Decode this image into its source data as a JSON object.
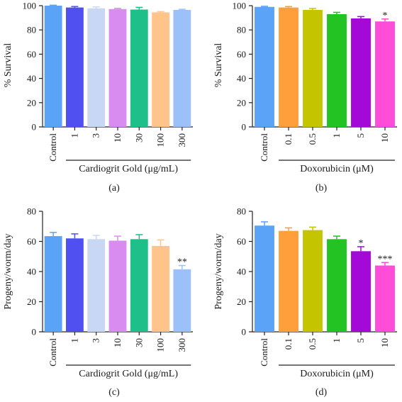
{
  "chart_data": [
    {
      "type": "bar",
      "panel_label": "(a)",
      "ylabel": "% Survival",
      "ylim": [
        0,
        100
      ],
      "yticks": [
        0,
        20,
        40,
        60,
        80,
        100
      ],
      "group_label": "Cardiogrit Gold (μg/mL)",
      "categories": [
        "Control",
        "1",
        "3",
        "10",
        "30",
        "100",
        "300"
      ],
      "values": [
        100,
        98.5,
        97.8,
        97.2,
        96.8,
        94.5,
        96.5
      ],
      "errors": [
        0.4,
        0.8,
        1.2,
        0.6,
        1.8,
        0.6,
        0.5
      ],
      "significance": [
        "",
        "",
        "",
        "",
        "",
        "",
        ""
      ],
      "colors": [
        "#5aa3f7",
        "#5050f0",
        "#c8d8f4",
        "#d98cf0",
        "#1fbf8a",
        "#ffc48a",
        "#9cc0f8"
      ]
    },
    {
      "type": "bar",
      "panel_label": "(b)",
      "ylabel": "% Survival",
      "ylim": [
        0,
        100
      ],
      "yticks": [
        0,
        20,
        40,
        60,
        80,
        100
      ],
      "group_label": "Doxorubicin (μM)",
      "categories": [
        "Control",
        "0.1",
        "0.5",
        "1",
        "5",
        "10"
      ],
      "values": [
        99,
        98.5,
        96.5,
        93,
        89.5,
        87
      ],
      "errors": [
        0.5,
        0.8,
        1.2,
        1.5,
        1.5,
        2
      ],
      "significance": [
        "",
        "",
        "",
        "",
        "",
        "*"
      ],
      "colors": [
        "#5aa3f7",
        "#ff9f3c",
        "#c4c400",
        "#22c322",
        "#a30ad8",
        "#ff4dda"
      ]
    },
    {
      "type": "bar",
      "panel_label": "(c)",
      "ylabel": "Progeny/worm/day",
      "ylim": [
        0,
        80
      ],
      "yticks": [
        0,
        20,
        40,
        60,
        80
      ],
      "group_label": "Cardiogrit Gold (μg/mL)",
      "categories": [
        "Control",
        "1",
        "3",
        "10",
        "30",
        "100",
        "300"
      ],
      "values": [
        63.5,
        62,
        61.5,
        60.5,
        61.5,
        57,
        41.5
      ],
      "errors": [
        2.5,
        3,
        2.5,
        3,
        3,
        4,
        2.5
      ],
      "significance": [
        "",
        "",
        "",
        "",
        "",
        "",
        "**"
      ],
      "colors": [
        "#5aa3f7",
        "#5050f0",
        "#c8d8f4",
        "#d98cf0",
        "#1fbf8a",
        "#ffc48a",
        "#9cc0f8"
      ]
    },
    {
      "type": "bar",
      "panel_label": "(d)",
      "ylabel": "Progeny/worm/day",
      "ylim": [
        0,
        80
      ],
      "yticks": [
        0,
        20,
        40,
        60,
        80
      ],
      "group_label": "Doxorubicin (μM)",
      "categories": [
        "Control",
        "0.1",
        "0.5",
        "1",
        "5",
        "10"
      ],
      "values": [
        70.5,
        67,
        67.5,
        61.5,
        53.5,
        44
      ],
      "errors": [
        2.5,
        2,
        2,
        2,
        3,
        2
      ],
      "significance": [
        "",
        "",
        "",
        "",
        "*",
        "***"
      ],
      "colors": [
        "#5aa3f7",
        "#ff9f3c",
        "#c4c400",
        "#22c322",
        "#a30ad8",
        "#ff4dda"
      ]
    }
  ]
}
